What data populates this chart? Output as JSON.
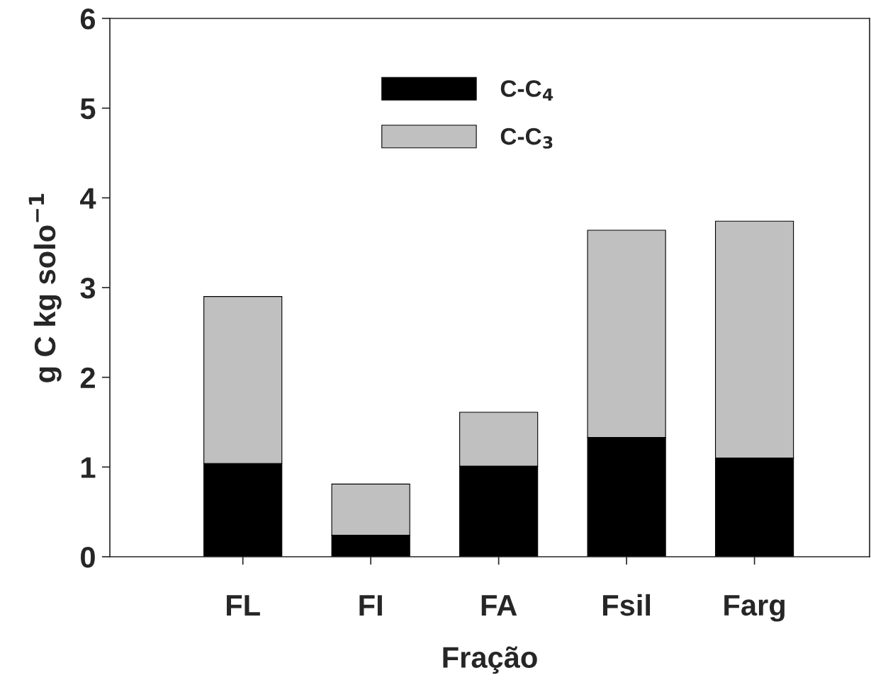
{
  "chart_data": {
    "type": "bar",
    "stacked": true,
    "xlabel": "Fração",
    "ylabel": "g C kg solo$^{−1}$",
    "categories": [
      "FL",
      "FI",
      "FA",
      "Fsil",
      "Farg"
    ],
    "series": [
      {
        "name": "C-C$_{4}$",
        "color": "#000000",
        "values": [
          1.04,
          0.24,
          1.01,
          1.33,
          1.1
        ]
      },
      {
        "name": "C-C$_{3}$",
        "color": "#c0c0c0",
        "values": [
          1.86,
          0.57,
          0.6,
          2.31,
          2.64
        ]
      }
    ],
    "ylim": [
      0,
      6
    ],
    "yticks": [
      0,
      1,
      2,
      3,
      4,
      5,
      6
    ],
    "grid": false,
    "legend": "top center"
  }
}
